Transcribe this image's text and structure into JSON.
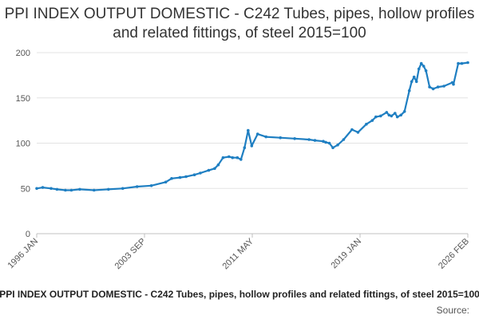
{
  "chart_data": {
    "type": "line",
    "title": "PPI INDEX OUTPUT DOMESTIC - C242 Tubes, pipes, hollow profiles and related fittings, of steel 2015=100",
    "legend": "PPI INDEX OUTPUT DOMESTIC - C242 Tubes, pipes, hollow profiles and related fittings, of steel 2015=100",
    "source": "Source:",
    "xlabel": "",
    "ylabel": "",
    "x_ticks": [
      "1996 JAN",
      "2003 SEP",
      "2011 MAY",
      "2019 JAN",
      "2026 FEB"
    ],
    "y_ticks": [
      0,
      50,
      100,
      150,
      200
    ],
    "ylim": [
      0,
      200
    ],
    "xlim": [
      "1996-01",
      "2026-02"
    ],
    "grid": "horizontal",
    "series_color": "#1f7fc2",
    "series": [
      {
        "name": "",
        "x": [
          "1996-01",
          "1996-06",
          "1997-01",
          "1997-06",
          "1998-01",
          "1998-06",
          "1999-01",
          "2000-01",
          "2001-01",
          "2002-01",
          "2003-01",
          "2004-01",
          "2005-01",
          "2005-06",
          "2006-01",
          "2006-06",
          "2007-01",
          "2007-06",
          "2008-01",
          "2008-06",
          "2008-09",
          "2009-01",
          "2009-06",
          "2009-09",
          "2010-01",
          "2010-04",
          "2010-07",
          "2010-10",
          "2011-01",
          "2011-06",
          "2012-01",
          "2013-01",
          "2014-01",
          "2015-01",
          "2015-06",
          "2016-01",
          "2016-03",
          "2016-06",
          "2016-09",
          "2017-01",
          "2017-06",
          "2018-01",
          "2018-06",
          "2019-01",
          "2019-06",
          "2019-09",
          "2020-01",
          "2020-06",
          "2020-08",
          "2020-10",
          "2021-01",
          "2021-03",
          "2021-06",
          "2021-09",
          "2022-01",
          "2022-03",
          "2022-05",
          "2022-07",
          "2022-09",
          "2022-11",
          "2023-01",
          "2023-03",
          "2023-06",
          "2023-09",
          "2024-01",
          "2024-06",
          "2025-01",
          "2025-02",
          "2025-06",
          "2025-09",
          "2026-02"
        ],
        "values": [
          50,
          51,
          50,
          49,
          48,
          48,
          49,
          48,
          49,
          50,
          52,
          53,
          57,
          61,
          62,
          63,
          65,
          67,
          70,
          72,
          76,
          84,
          85,
          84,
          84,
          82,
          95,
          114,
          97,
          110,
          107,
          106,
          105,
          104,
          103,
          102,
          101,
          100,
          95,
          98,
          104,
          115,
          112,
          121,
          125,
          129,
          130,
          134,
          131,
          130,
          133,
          129,
          131,
          135,
          158,
          168,
          173,
          168,
          182,
          188,
          185,
          180,
          162,
          160,
          162,
          163,
          167,
          165,
          188,
          188,
          189
        ]
      }
    ]
  }
}
